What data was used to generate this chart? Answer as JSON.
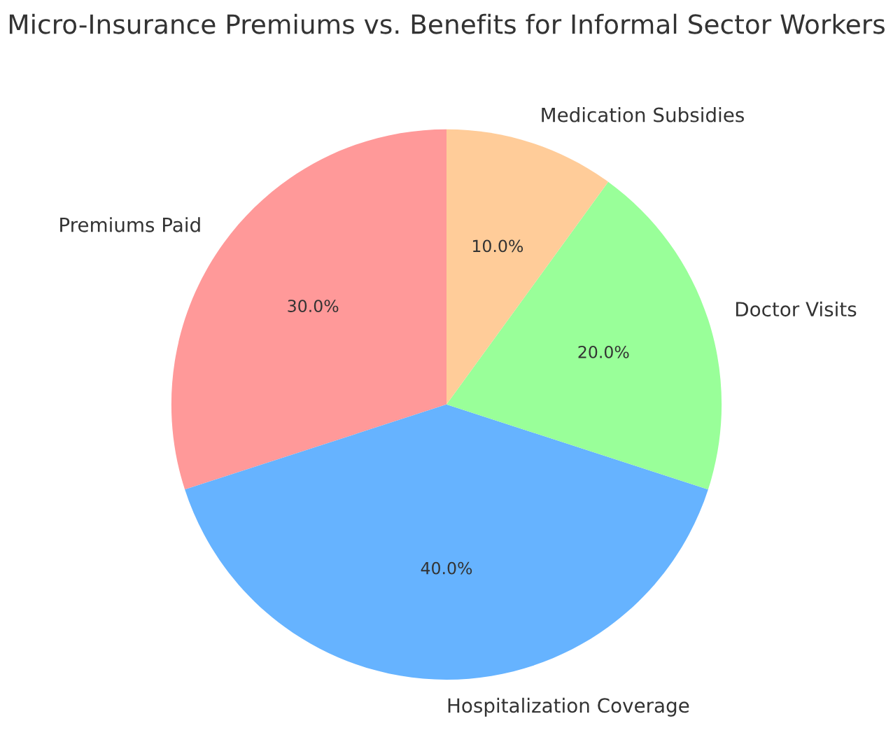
{
  "chart_data": {
    "type": "pie",
    "title": "Micro-Insurance Premiums vs. Benefits for Informal Sector Workers",
    "categories": [
      "Premiums Paid",
      "Hospitalization Coverage",
      "Doctor Visits",
      "Medication Subsidies"
    ],
    "values": [
      30,
      40,
      20,
      10
    ],
    "colors": [
      "#ff9999",
      "#66b3ff",
      "#99ff99",
      "#ffcc99"
    ],
    "value_labels": [
      "30.0%",
      "40.0%",
      "20.0%",
      "10.0%"
    ],
    "legend": false
  }
}
